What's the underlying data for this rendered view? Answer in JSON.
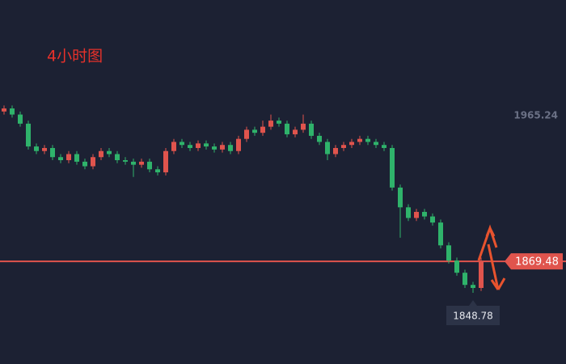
{
  "chart_data": {
    "type": "candlestick",
    "title": "4小时图",
    "ylim": [
      1802,
      2041.3
    ],
    "up_color": "#e0544d",
    "down_color": "#2fb36b",
    "open": [
      1968,
      1970,
      1966,
      1960,
      1945,
      1942,
      1944,
      1938,
      1936,
      1940,
      1935,
      1932,
      1938,
      1942,
      1940,
      1936,
      1935,
      1933,
      1935,
      1930,
      1928,
      1942,
      1948,
      1946,
      1944,
      1947,
      1945,
      1943,
      1946,
      1942,
      1950,
      1956,
      1954,
      1958,
      1962,
      1960,
      1953,
      1956,
      1960,
      1952,
      1948,
      1940,
      1944,
      1946,
      1948,
      1950,
      1948,
      1946,
      1944,
      1918,
      1905,
      1898,
      1902,
      1899,
      1895,
      1880,
      1870,
      1862,
      1854,
      1852
    ],
    "high": [
      1972,
      1972,
      1968,
      1962,
      1947,
      1946,
      1946,
      1940,
      1942,
      1942,
      1937,
      1940,
      1944,
      1944,
      1942,
      1938,
      1937,
      1937,
      1937,
      1932,
      1944,
      1950,
      1950,
      1948,
      1949,
      1949,
      1947,
      1948,
      1948,
      1952,
      1958,
      1958,
      1962,
      1966,
      1964,
      1962,
      1958,
      1966,
      1962,
      1954,
      1950,
      1946,
      1948,
      1950,
      1952,
      1952,
      1950,
      1948,
      1946,
      1920,
      1907,
      1904,
      1904,
      1901,
      1897,
      1882,
      1872,
      1864,
      1856,
      1872
    ],
    "low": [
      1966,
      1964,
      1958,
      1943,
      1940,
      1940,
      1936,
      1934,
      1934,
      1933,
      1930,
      1930,
      1936,
      1938,
      1934,
      1933,
      1925,
      1931,
      1928,
      1926,
      1926,
      1940,
      1944,
      1942,
      1942,
      1943,
      1941,
      1941,
      1940,
      1940,
      1948,
      1952,
      1952,
      1956,
      1958,
      1951,
      1951,
      1954,
      1950,
      1946,
      1936,
      1938,
      1942,
      1944,
      1946,
      1946,
      1944,
      1942,
      1916,
      1885,
      1896,
      1896,
      1897,
      1893,
      1878,
      1868,
      1860,
      1852,
      1848.78,
      1850
    ],
    "close": [
      1970,
      1966,
      1960,
      1945,
      1942,
      1944,
      1938,
      1936,
      1940,
      1935,
      1932,
      1938,
      1942,
      1940,
      1936,
      1935,
      1933,
      1935,
      1930,
      1928,
      1942,
      1948,
      1946,
      1944,
      1947,
      1945,
      1943,
      1946,
      1942,
      1950,
      1956,
      1954,
      1958,
      1962,
      1960,
      1953,
      1956,
      1960,
      1952,
      1948,
      1940,
      1944,
      1946,
      1948,
      1950,
      1948,
      1946,
      1944,
      1918,
      1905,
      1898,
      1902,
      1899,
      1895,
      1880,
      1870,
      1862,
      1854,
      1852,
      1869.48
    ],
    "reference_price": 1965.24,
    "current_price": 1869.48,
    "low_label": {
      "index": 58,
      "value": 1848.78
    }
  }
}
